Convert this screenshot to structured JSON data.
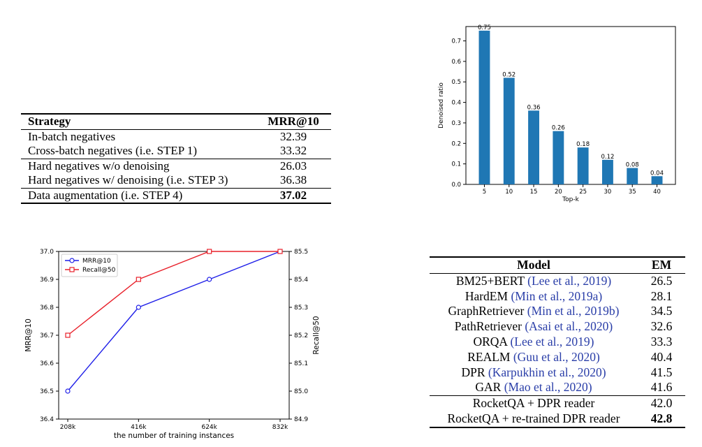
{
  "table1": {
    "headers": [
      "Strategy",
      "MRR@10"
    ],
    "rows": [
      {
        "strategy": "In-batch negatives",
        "mrr": "32.39"
      },
      {
        "strategy": "Cross-batch negatives (i.e. STEP 1)",
        "mrr": "33.32"
      },
      {
        "strategy": "Hard negatives w/o denoising",
        "mrr": "26.03"
      },
      {
        "strategy": "Hard negatives w/ denoising (i.e. STEP 3)",
        "mrr": "36.38"
      },
      {
        "strategy": "Data augmentation (i.e. STEP 4)",
        "mrr": "37.02"
      }
    ]
  },
  "table2": {
    "headers": [
      "Model",
      "EM"
    ],
    "rows": [
      {
        "model": "BM25+BERT",
        "cite": "(Lee et al., 2019)",
        "em": "26.5"
      },
      {
        "model": "HardEM",
        "cite": "(Min et al., 2019a)",
        "em": "28.1"
      },
      {
        "model": "GraphRetriever",
        "cite": "(Min et al., 2019b)",
        "em": "34.5"
      },
      {
        "model": "PathRetriever",
        "cite": "(Asai et al., 2020)",
        "em": "32.6"
      },
      {
        "model": "ORQA",
        "cite": "(Lee et al., 2019)",
        "em": "33.3"
      },
      {
        "model": "REALM",
        "cite": "(Guu et al., 2020)",
        "em": "40.4"
      },
      {
        "model": "DPR",
        "cite": "(Karpukhin et al., 2020)",
        "em": "41.5"
      },
      {
        "model": "GAR",
        "cite": "(Mao et al., 2020)",
        "em": "41.6"
      },
      {
        "model": "RocketQA + DPR reader",
        "cite": "",
        "em": "42.0"
      },
      {
        "model": "RocketQA + re-trained DPR reader",
        "cite": "",
        "em": "42.8"
      }
    ]
  },
  "chart_data": [
    {
      "type": "bar",
      "title": "",
      "xlabel": "Top-k",
      "ylabel": "Denoised ratio",
      "categories": [
        "5",
        "10",
        "15",
        "20",
        "25",
        "30",
        "35",
        "40"
      ],
      "values": [
        0.75,
        0.52,
        0.36,
        0.26,
        0.18,
        0.12,
        0.08,
        0.04
      ],
      "value_labels": [
        "0.75",
        "0.52",
        "0.36",
        "0.26",
        "0.18",
        "0.12",
        "0.08",
        "0.04"
      ],
      "ylim": [
        0,
        0.77
      ],
      "yticks": [
        "0.0",
        "0.1",
        "0.2",
        "0.3",
        "0.4",
        "0.5",
        "0.6",
        "0.7"
      ],
      "bar_color": "#1f77b4"
    },
    {
      "type": "line",
      "title": "",
      "xlabel": "the number of training instances",
      "ylabel": "MRR@10",
      "ylabel_right": "Recall@50",
      "categories": [
        "208k",
        "416k",
        "624k",
        "832k"
      ],
      "ylim": [
        36.4,
        37.0
      ],
      "ylim_right": [
        84.9,
        85.5
      ],
      "yticks": [
        "36.4",
        "36.5",
        "36.6",
        "36.7",
        "36.8",
        "36.9",
        "37.0"
      ],
      "yticks_right": [
        "84.9",
        "85.0",
        "85.1",
        "85.2",
        "85.3",
        "85.4",
        "85.5"
      ],
      "legend_position": "top-left",
      "series": [
        {
          "name": "MRR@10",
          "axis": "left",
          "color": "#1f1fe8",
          "values": [
            36.5,
            36.8,
            36.9,
            37.0
          ]
        },
        {
          "name": "Recall@50",
          "axis": "right",
          "color": "#e8202a",
          "values": [
            85.2,
            85.4,
            85.5,
            85.5
          ]
        }
      ]
    }
  ]
}
